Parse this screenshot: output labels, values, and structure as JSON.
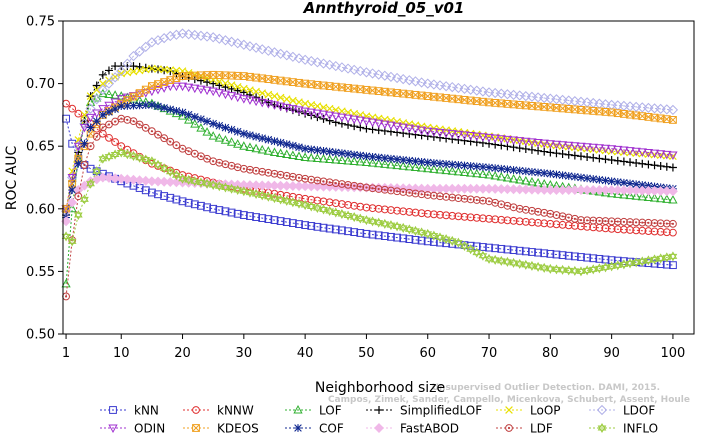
{
  "chart_data": {
    "type": "line",
    "title": "Annthyroid_05_v01",
    "xlabel": "Neighborhood size",
    "ylabel": "ROC AUC",
    "xlim": [
      1,
      100
    ],
    "ylim": [
      0.5,
      0.75
    ],
    "x_ticks": [
      1,
      10,
      20,
      30,
      40,
      50,
      60,
      70,
      80,
      90,
      100
    ],
    "y_ticks": [
      0.5,
      0.55,
      0.6,
      0.65,
      0.7,
      0.75
    ],
    "y_tick_labels": [
      "0.50",
      "0.55",
      "0.60",
      "0.65",
      "0.70",
      "0.75"
    ],
    "grid": false,
    "legend_position": "bottom",
    "watermark": [
      "Unsupervised Outlier Detection. DAMI, 2015.",
      "Campos, Zimek, Sander, Campello, Micenkova, Schubert, Assent, Houle"
    ],
    "series": [
      {
        "name": "kNN",
        "color": "#3a3ad0",
        "marker": "square",
        "points": [
          [
            1,
            0.672
          ],
          [
            2,
            0.652
          ],
          [
            3,
            0.64
          ],
          [
            4,
            0.635
          ],
          [
            5,
            0.632
          ],
          [
            7,
            0.628
          ],
          [
            10,
            0.622
          ],
          [
            15,
            0.613
          ],
          [
            20,
            0.606
          ],
          [
            25,
            0.6
          ],
          [
            30,
            0.595
          ],
          [
            40,
            0.587
          ],
          [
            50,
            0.58
          ],
          [
            60,
            0.574
          ],
          [
            70,
            0.569
          ],
          [
            80,
            0.564
          ],
          [
            90,
            0.559
          ],
          [
            100,
            0.555
          ]
        ]
      },
      {
        "name": "kNNW",
        "color": "#e03030",
        "marker": "circle",
        "points": [
          [
            1,
            0.684
          ],
          [
            2,
            0.68
          ],
          [
            3,
            0.676
          ],
          [
            5,
            0.668
          ],
          [
            7,
            0.66
          ],
          [
            10,
            0.65
          ],
          [
            15,
            0.636
          ],
          [
            20,
            0.627
          ],
          [
            25,
            0.621
          ],
          [
            30,
            0.616
          ],
          [
            40,
            0.608
          ],
          [
            50,
            0.601
          ],
          [
            60,
            0.596
          ],
          [
            70,
            0.592
          ],
          [
            80,
            0.588
          ],
          [
            90,
            0.584
          ],
          [
            100,
            0.581
          ]
        ]
      },
      {
        "name": "LOF",
        "color": "#30b030",
        "marker": "triangle",
        "points": [
          [
            1,
            0.54
          ],
          [
            2,
            0.6
          ],
          [
            3,
            0.64
          ],
          [
            4,
            0.67
          ],
          [
            5,
            0.685
          ],
          [
            7,
            0.692
          ],
          [
            10,
            0.69
          ],
          [
            15,
            0.684
          ],
          [
            20,
            0.674
          ],
          [
            25,
            0.658
          ],
          [
            30,
            0.65
          ],
          [
            35,
            0.645
          ],
          [
            40,
            0.641
          ],
          [
            50,
            0.637
          ],
          [
            60,
            0.632
          ],
          [
            70,
            0.627
          ],
          [
            80,
            0.619
          ],
          [
            90,
            0.612
          ],
          [
            100,
            0.607
          ]
        ]
      },
      {
        "name": "SimplifiedLOF",
        "color": "#000000",
        "marker": "plus",
        "points": [
          [
            1,
            0.595
          ],
          [
            2,
            0.622
          ],
          [
            3,
            0.645
          ],
          [
            4,
            0.67
          ],
          [
            5,
            0.69
          ],
          [
            7,
            0.707
          ],
          [
            9,
            0.714
          ],
          [
            12,
            0.714
          ],
          [
            15,
            0.712
          ],
          [
            18,
            0.71
          ],
          [
            20,
            0.706
          ],
          [
            25,
            0.7
          ],
          [
            30,
            0.693
          ],
          [
            35,
            0.683
          ],
          [
            40,
            0.676
          ],
          [
            45,
            0.669
          ],
          [
            50,
            0.664
          ],
          [
            60,
            0.658
          ],
          [
            70,
            0.652
          ],
          [
            80,
            0.645
          ],
          [
            90,
            0.639
          ],
          [
            100,
            0.633
          ]
        ]
      },
      {
        "name": "LoOP",
        "color": "#e8e000",
        "marker": "x",
        "points": [
          [
            1,
            0.599
          ],
          [
            2,
            0.63
          ],
          [
            3,
            0.655
          ],
          [
            4,
            0.675
          ],
          [
            5,
            0.69
          ],
          [
            7,
            0.7
          ],
          [
            10,
            0.708
          ],
          [
            15,
            0.712
          ],
          [
            20,
            0.71
          ],
          [
            25,
            0.703
          ],
          [
            30,
            0.696
          ],
          [
            40,
            0.684
          ],
          [
            50,
            0.674
          ],
          [
            60,
            0.665
          ],
          [
            70,
            0.658
          ],
          [
            80,
            0.651
          ],
          [
            90,
            0.646
          ],
          [
            100,
            0.642
          ]
        ]
      },
      {
        "name": "LDOF",
        "color": "#b0b0e8",
        "marker": "diamond",
        "points": [
          [
            1,
            0.598
          ],
          [
            2,
            0.625
          ],
          [
            3,
            0.65
          ],
          [
            4,
            0.668
          ],
          [
            5,
            0.68
          ],
          [
            7,
            0.695
          ],
          [
            10,
            0.71
          ],
          [
            12,
            0.722
          ],
          [
            15,
            0.733
          ],
          [
            18,
            0.738
          ],
          [
            20,
            0.74
          ],
          [
            25,
            0.737
          ],
          [
            30,
            0.731
          ],
          [
            35,
            0.725
          ],
          [
            40,
            0.719
          ],
          [
            50,
            0.709
          ],
          [
            60,
            0.7
          ],
          [
            70,
            0.693
          ],
          [
            80,
            0.688
          ],
          [
            90,
            0.683
          ],
          [
            100,
            0.679
          ]
        ]
      },
      {
        "name": "ODIN",
        "color": "#a030d0",
        "marker": "triangle-down",
        "points": [
          [
            1,
            0.6
          ],
          [
            2,
            0.625
          ],
          [
            3,
            0.65
          ],
          [
            4,
            0.665
          ],
          [
            5,
            0.673
          ],
          [
            7,
            0.68
          ],
          [
            10,
            0.688
          ],
          [
            15,
            0.694
          ],
          [
            18,
            0.698
          ],
          [
            20,
            0.698
          ],
          [
            25,
            0.694
          ],
          [
            30,
            0.688
          ],
          [
            35,
            0.683
          ],
          [
            40,
            0.678
          ],
          [
            50,
            0.67
          ],
          [
            60,
            0.662
          ],
          [
            70,
            0.657
          ],
          [
            80,
            0.652
          ],
          [
            90,
            0.648
          ],
          [
            100,
            0.643
          ]
        ]
      },
      {
        "name": "KDEOS",
        "color": "#f0a020",
        "marker": "square-x",
        "points": [
          [
            1,
            0.6
          ],
          [
            2,
            0.62
          ],
          [
            3,
            0.64
          ],
          [
            5,
            0.66
          ],
          [
            7,
            0.675
          ],
          [
            10,
            0.684
          ],
          [
            15,
            0.698
          ],
          [
            20,
            0.706
          ],
          [
            25,
            0.707
          ],
          [
            30,
            0.706
          ],
          [
            35,
            0.703
          ],
          [
            40,
            0.7
          ],
          [
            50,
            0.695
          ],
          [
            60,
            0.69
          ],
          [
            70,
            0.685
          ],
          [
            80,
            0.681
          ],
          [
            90,
            0.677
          ],
          [
            100,
            0.671
          ]
        ]
      },
      {
        "name": "COF",
        "color": "#102890",
        "marker": "star",
        "points": [
          [
            1,
            0.593
          ],
          [
            2,
            0.615
          ],
          [
            3,
            0.636
          ],
          [
            4,
            0.652
          ],
          [
            5,
            0.665
          ],
          [
            7,
            0.675
          ],
          [
            10,
            0.682
          ],
          [
            15,
            0.683
          ],
          [
            20,
            0.677
          ],
          [
            25,
            0.668
          ],
          [
            30,
            0.66
          ],
          [
            35,
            0.654
          ],
          [
            40,
            0.648
          ],
          [
            50,
            0.642
          ],
          [
            60,
            0.637
          ],
          [
            70,
            0.633
          ],
          [
            80,
            0.628
          ],
          [
            90,
            0.622
          ],
          [
            100,
            0.616
          ]
        ]
      },
      {
        "name": "FastABOD",
        "color": "#f0b8e8",
        "marker": "diamond-filled",
        "points": [
          [
            1,
            0.59
          ],
          [
            2,
            0.605
          ],
          [
            3,
            0.615
          ],
          [
            5,
            0.622
          ],
          [
            7,
            0.625
          ],
          [
            10,
            0.624
          ],
          [
            15,
            0.622
          ],
          [
            20,
            0.621
          ],
          [
            30,
            0.619
          ],
          [
            40,
            0.618
          ],
          [
            50,
            0.617
          ],
          [
            60,
            0.616
          ],
          [
            70,
            0.616
          ],
          [
            80,
            0.615
          ],
          [
            90,
            0.615
          ],
          [
            100,
            0.614
          ]
        ]
      },
      {
        "name": "LDF",
        "color": "#c04040",
        "marker": "circle-dot",
        "points": [
          [
            1,
            0.53
          ],
          [
            2,
            0.575
          ],
          [
            3,
            0.61
          ],
          [
            4,
            0.635
          ],
          [
            5,
            0.65
          ],
          [
            7,
            0.665
          ],
          [
            10,
            0.672
          ],
          [
            12,
            0.67
          ],
          [
            15,
            0.662
          ],
          [
            20,
            0.648
          ],
          [
            25,
            0.638
          ],
          [
            30,
            0.632
          ],
          [
            40,
            0.624
          ],
          [
            50,
            0.617
          ],
          [
            60,
            0.611
          ],
          [
            70,
            0.606
          ],
          [
            75,
            0.6
          ],
          [
            80,
            0.596
          ],
          [
            85,
            0.591
          ],
          [
            90,
            0.59
          ],
          [
            100,
            0.588
          ]
        ]
      },
      {
        "name": "INFLO",
        "color": "#9ccc40",
        "marker": "star-of-david",
        "points": [
          [
            1,
            0.578
          ],
          [
            2,
            0.574
          ],
          [
            3,
            0.595
          ],
          [
            5,
            0.62
          ],
          [
            7,
            0.64
          ],
          [
            10,
            0.645
          ],
          [
            15,
            0.638
          ],
          [
            20,
            0.624
          ],
          [
            30,
            0.614
          ],
          [
            40,
            0.603
          ],
          [
            50,
            0.591
          ],
          [
            55,
            0.586
          ],
          [
            60,
            0.58
          ],
          [
            65,
            0.573
          ],
          [
            68,
            0.565
          ],
          [
            70,
            0.56
          ],
          [
            75,
            0.556
          ],
          [
            80,
            0.552
          ],
          [
            85,
            0.55
          ],
          [
            90,
            0.554
          ],
          [
            95,
            0.558
          ],
          [
            100,
            0.562
          ]
        ]
      }
    ]
  }
}
